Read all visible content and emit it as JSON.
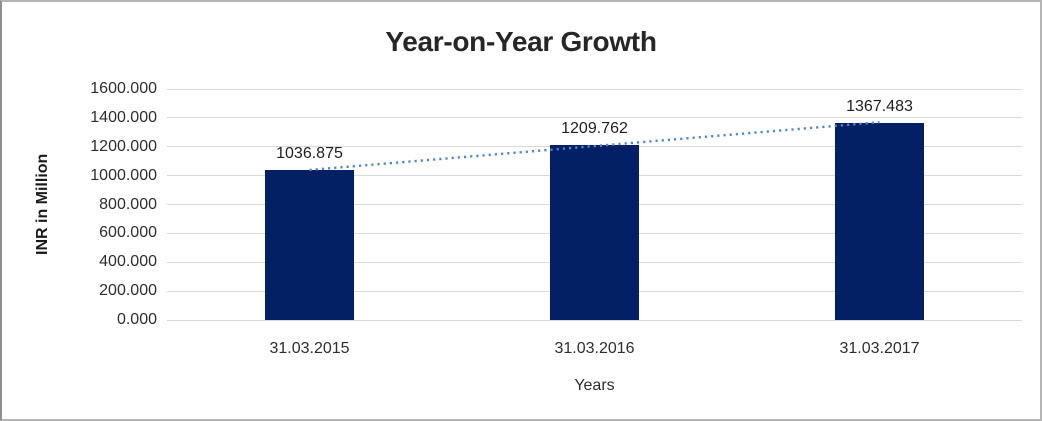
{
  "chart_data": {
    "type": "bar",
    "title": "Year-on-Year Growth",
    "xlabel": "Years",
    "ylabel": "INR in Million",
    "categories": [
      "31.03.2015",
      "31.03.2016",
      "31.03.2017"
    ],
    "values": [
      1036.875,
      1209.762,
      1367.483
    ],
    "data_labels": [
      "1036.875",
      "1209.762",
      "1367.483"
    ],
    "ylim": [
      0,
      1600
    ],
    "y_ticks": {
      "values": [
        0,
        200,
        400,
        600,
        800,
        1000,
        1200,
        1400,
        1600
      ],
      "labels": [
        "0.000",
        "200.000",
        "400.000",
        "600.000",
        "800.000",
        "1000.000",
        "1200.000",
        "1400.000",
        "1600.000"
      ]
    },
    "grid": "horizontal",
    "legend": "none",
    "trendline": {
      "type": "linear",
      "style": "dotted",
      "color": "#4f87c9"
    },
    "colors": {
      "bar": "#032064",
      "gridline": "#d9d9d9",
      "title_text": "#262626",
      "axis_text": "#2e2e2e",
      "background": "#ffffff",
      "frame_border": "#b5b5b5"
    }
  }
}
